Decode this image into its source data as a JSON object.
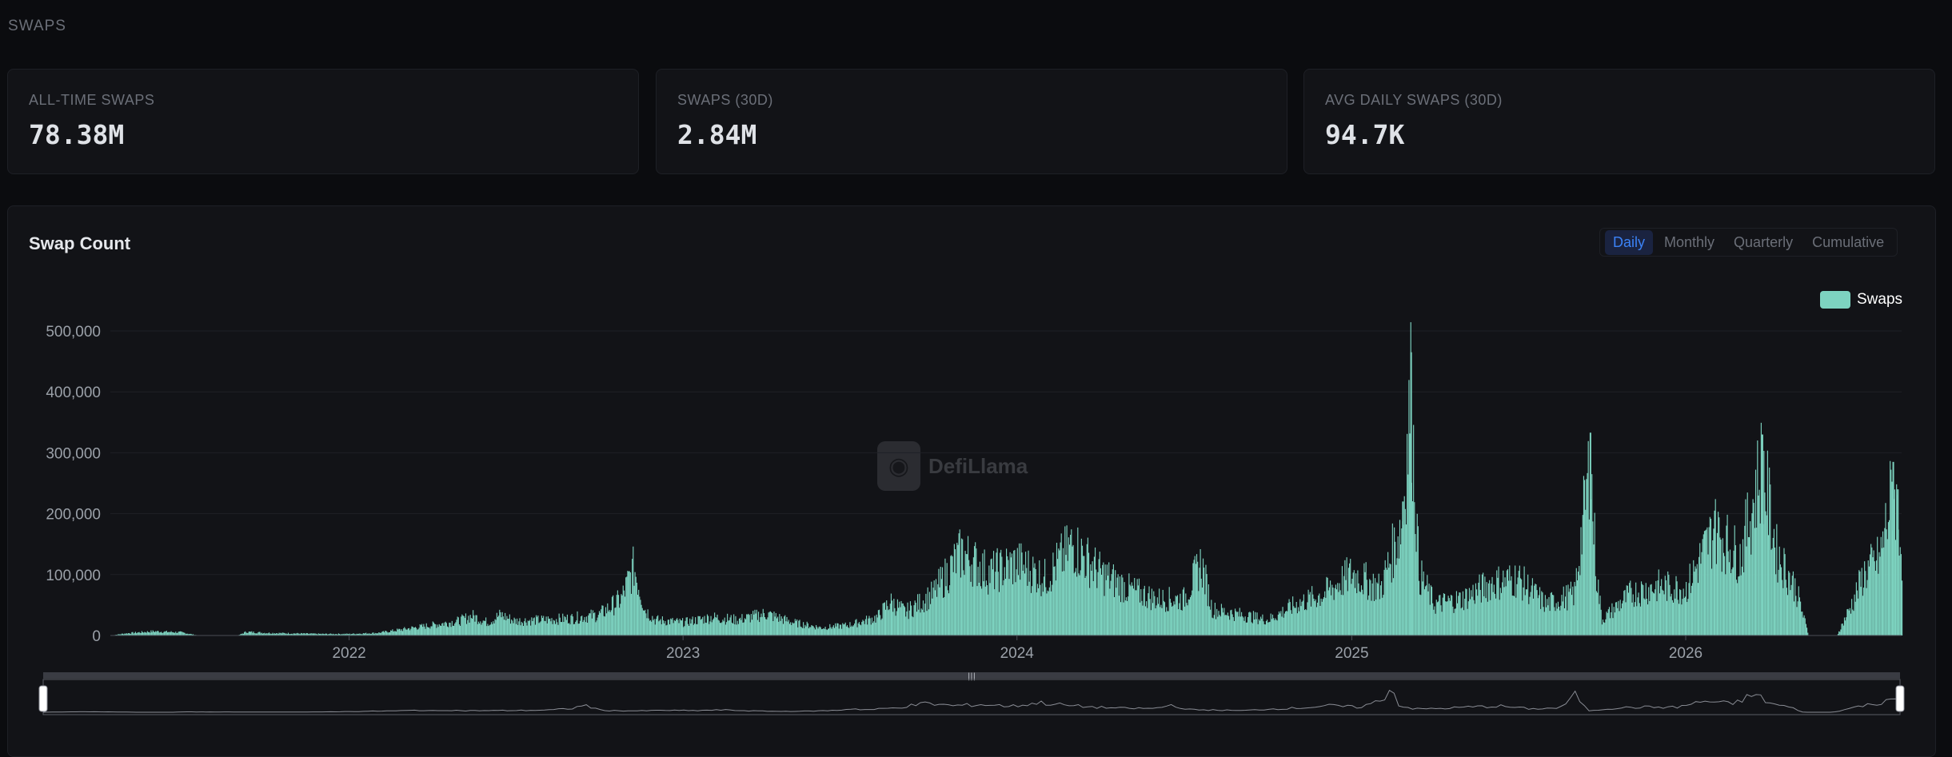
{
  "section_label": "SWAPS",
  "stats": [
    {
      "label": "ALL-TIME SWAPS",
      "value": "78.38M"
    },
    {
      "label": "SWAPS (30D)",
      "value": "2.84M"
    },
    {
      "label": "AVG DAILY SWAPS (30D)",
      "value": "94.7K"
    }
  ],
  "chart_card": {
    "title": "Swap Count",
    "tabs": [
      {
        "label": "Daily",
        "active": true
      },
      {
        "label": "Monthly",
        "active": false
      },
      {
        "label": "Quarterly",
        "active": false
      },
      {
        "label": "Cumulative",
        "active": false
      }
    ],
    "watermark": "DefiLlama",
    "colors": {
      "series": "#7dd3c0",
      "active_tab": "#3b82f6"
    }
  },
  "chart_data": {
    "type": "bar",
    "legend": {
      "position": "top-right"
    },
    "grid": true,
    "ylim": [
      0,
      500000
    ],
    "yticks": [
      "500,000",
      "400,000",
      "300,000",
      "200,000",
      "100,000",
      "0"
    ],
    "xticks": [
      "2022",
      "2023",
      "2024",
      "2025",
      "2026"
    ],
    "xrange": [
      "2021-04-15",
      "2026-08-25"
    ],
    "series": [
      {
        "name": "Swaps",
        "color": "#7dd3c0",
        "points": [
          [
            "2021-04-15",
            0
          ],
          [
            "2021-05-01",
            4000
          ],
          [
            "2021-06-01",
            8000
          ],
          [
            "2021-07-01",
            6000
          ],
          [
            "2021-07-20",
            0
          ],
          [
            "2021-09-01",
            0
          ],
          [
            "2021-09-10",
            7000
          ],
          [
            "2021-10-01",
            5000
          ],
          [
            "2021-11-01",
            4000
          ],
          [
            "2021-12-01",
            3000
          ],
          [
            "2022-01-01",
            3000
          ],
          [
            "2022-02-01",
            5000
          ],
          [
            "2022-03-01",
            12000
          ],
          [
            "2022-04-01",
            20000
          ],
          [
            "2022-05-01",
            28000
          ],
          [
            "2022-05-15",
            38000
          ],
          [
            "2022-06-01",
            25000
          ],
          [
            "2022-06-15",
            40000
          ],
          [
            "2022-07-01",
            28000
          ],
          [
            "2022-08-01",
            30000
          ],
          [
            "2022-09-01",
            33000
          ],
          [
            "2022-10-01",
            40000
          ],
          [
            "2022-10-25",
            70000
          ],
          [
            "2022-11-08",
            132000
          ],
          [
            "2022-11-20",
            50000
          ],
          [
            "2022-12-01",
            30000
          ],
          [
            "2023-01-01",
            25000
          ],
          [
            "2023-02-01",
            35000
          ],
          [
            "2023-03-01",
            30000
          ],
          [
            "2023-04-01",
            42000
          ],
          [
            "2023-05-01",
            25000
          ],
          [
            "2023-06-01",
            15000
          ],
          [
            "2023-07-01",
            20000
          ],
          [
            "2023-08-01",
            35000
          ],
          [
            "2023-08-15",
            65000
          ],
          [
            "2023-09-01",
            45000
          ],
          [
            "2023-10-01",
            80000
          ],
          [
            "2023-11-01",
            160000
          ],
          [
            "2023-12-01",
            120000
          ],
          [
            "2024-01-01",
            140000
          ],
          [
            "2024-02-01",
            110000
          ],
          [
            "2024-03-01",
            175000
          ],
          [
            "2024-04-01",
            120000
          ],
          [
            "2024-05-01",
            90000
          ],
          [
            "2024-06-01",
            70000
          ],
          [
            "2024-07-01",
            70000
          ],
          [
            "2024-07-20",
            140000
          ],
          [
            "2024-08-01",
            50000
          ],
          [
            "2024-09-01",
            40000
          ],
          [
            "2024-10-01",
            30000
          ],
          [
            "2024-11-01",
            60000
          ],
          [
            "2024-12-01",
            80000
          ],
          [
            "2025-01-01",
            120000
          ],
          [
            "2025-02-01",
            90000
          ],
          [
            "2025-02-25",
            220000
          ],
          [
            "2025-03-06",
            465000
          ],
          [
            "2025-03-15",
            120000
          ],
          [
            "2025-04-01",
            60000
          ],
          [
            "2025-05-01",
            70000
          ],
          [
            "2025-06-01",
            100000
          ],
          [
            "2025-07-01",
            110000
          ],
          [
            "2025-08-01",
            60000
          ],
          [
            "2025-09-01",
            80000
          ],
          [
            "2025-09-18",
            333000
          ],
          [
            "2025-09-25",
            120000
          ],
          [
            "2025-10-01",
            30000
          ],
          [
            "2025-11-01",
            80000
          ],
          [
            "2025-12-01",
            95000
          ],
          [
            "2026-01-01",
            90000
          ],
          [
            "2026-02-01",
            205000
          ],
          [
            "2026-03-01",
            150000
          ],
          [
            "2026-03-25",
            330000
          ],
          [
            "2026-04-10",
            160000
          ],
          [
            "2026-05-01",
            90000
          ],
          [
            "2026-05-15",
            0
          ],
          [
            "2026-06-01",
            0
          ],
          [
            "2026-06-15",
            0
          ],
          [
            "2026-07-01",
            60000
          ],
          [
            "2026-07-15",
            120000
          ],
          [
            "2026-08-01",
            150000
          ],
          [
            "2026-08-15",
            285000
          ],
          [
            "2026-08-20",
            240000
          ],
          [
            "2026-08-25",
            160000
          ]
        ]
      }
    ]
  }
}
